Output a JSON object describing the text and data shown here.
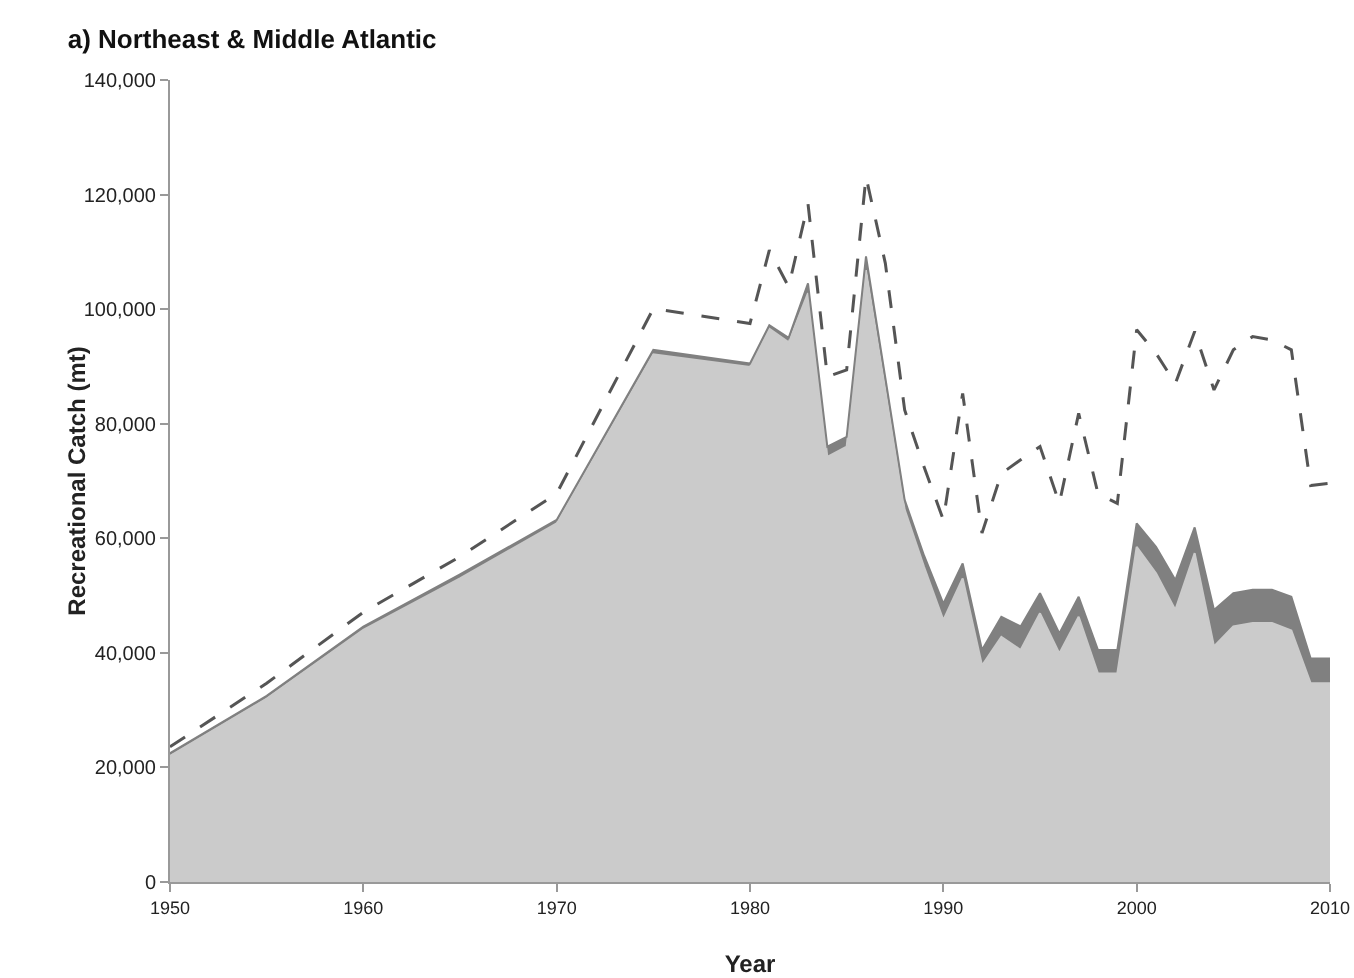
{
  "chart_data": {
    "type": "area",
    "title": "a) Northeast & Middle Atlantic",
    "xlabel": "Year",
    "ylabel": "Recreational Catch (mt)",
    "stacked": true,
    "grid": false,
    "x": [
      1950,
      1955,
      1960,
      1965,
      1970,
      1975,
      1980,
      1981,
      1982,
      1983,
      1984,
      1985,
      1986,
      1987,
      1988,
      1989,
      1990,
      1991,
      1992,
      1993,
      1994,
      1995,
      1996,
      1997,
      1998,
      1999,
      2000,
      2001,
      2002,
      2003,
      2004,
      2005,
      2006,
      2007,
      2008,
      2009,
      2010
    ],
    "xlim": [
      1950,
      2010
    ],
    "xticks": [
      1950,
      1960,
      1970,
      1980,
      1990,
      2000,
      2010
    ],
    "ylim": [
      0,
      140000
    ],
    "yticks": [
      {
        "value": 0,
        "label": "0"
      },
      {
        "value": 20000,
        "label": "20,000"
      },
      {
        "value": 40000,
        "label": "40,000"
      },
      {
        "value": 60000,
        "label": "60,000"
      },
      {
        "value": 80000,
        "label": "80,000"
      },
      {
        "value": 100000,
        "label": "100,000"
      },
      {
        "value": 120000,
        "label": "120,000"
      },
      {
        "value": 140000,
        "label": "140,000"
      }
    ],
    "series": [
      {
        "color": "#cbcbcb",
        "values": [
          22000,
          32000,
          44000,
          53000,
          62600,
          92100,
          89900,
          96600,
          94200,
          102800,
          74200,
          76000,
          106800,
          86000,
          65000,
          55000,
          45700,
          53000,
          37800,
          42800,
          40500,
          46900,
          39900,
          46300,
          36400,
          36400,
          58500,
          53900,
          47500,
          57400,
          41100,
          44600,
          45200,
          45200,
          43900,
          34700,
          34700
        ]
      },
      {
        "color": "#808080",
        "values": [
          500,
          500,
          600,
          700,
          600,
          800,
          600,
          600,
          800,
          1700,
          1800,
          1700,
          2400,
          2000,
          1700,
          2000,
          2900,
          2600,
          2700,
          3500,
          4100,
          3500,
          3500,
          3500,
          4100,
          4100,
          4100,
          4600,
          5200,
          4500,
          6400,
          5800,
          5800,
          5800,
          5900,
          4300,
          4300
        ]
      },
      {
        "type": "line",
        "color": "#555555",
        "line_style": "dashed",
        "values": [
          23600,
          34700,
          47100,
          56800,
          67800,
          100100,
          97500,
          110300,
          103900,
          118400,
          88200,
          89400,
          123100,
          108000,
          82400,
          72500,
          63200,
          85300,
          60900,
          71300,
          73700,
          76000,
          66100,
          81800,
          67800,
          66100,
          96400,
          92300,
          87000,
          96100,
          85900,
          92900,
          95200,
          94600,
          92900,
          69200,
          69600
        ]
      }
    ]
  }
}
